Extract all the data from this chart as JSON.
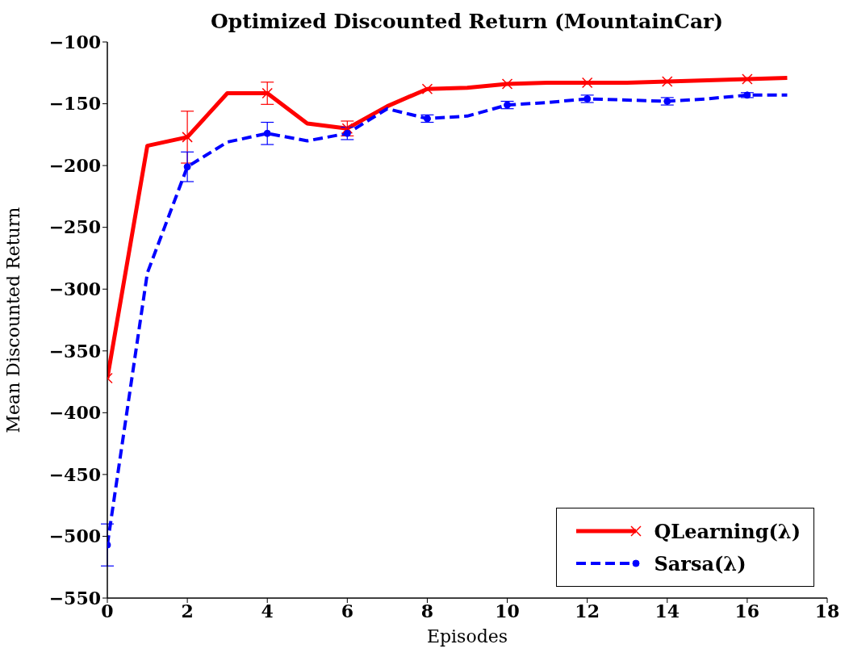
{
  "chart_data": {
    "type": "line",
    "title": "Optimized Discounted Return (MountainCar)",
    "xlabel": "Episodes",
    "ylabel": "Mean Discounted Return",
    "x": [
      0,
      1,
      2,
      3,
      4,
      5,
      6,
      7,
      8,
      9,
      10,
      11,
      12,
      13,
      14,
      15,
      16,
      17
    ],
    "xlim": [
      0,
      18
    ],
    "xticks": [
      0,
      2,
      4,
      6,
      8,
      10,
      12,
      14,
      16,
      18
    ],
    "ylim": [
      -550,
      -100
    ],
    "yticks": [
      -550,
      -500,
      -450,
      -400,
      -350,
      -300,
      -250,
      -200,
      -150,
      -100
    ],
    "grid": false,
    "legend": "bottom right",
    "series": [
      {
        "name": "QLearning(λ)",
        "color": "#ff0000",
        "marker": "cross",
        "line_style": "solid",
        "values": [
          -372,
          -184,
          -177,
          -141.5,
          -141.5,
          -166,
          -170,
          -152,
          -138,
          -137,
          -134,
          -133,
          -133,
          -133,
          -132,
          -131,
          -130,
          -129
        ],
        "errors": [
          null,
          null,
          21,
          null,
          9,
          null,
          6,
          null,
          null,
          null,
          null,
          null,
          null,
          null,
          null,
          null,
          null,
          null
        ]
      },
      {
        "name": "Sarsa(λ)",
        "color": "#0000ff",
        "marker": "circle",
        "line_style": "dashed",
        "values": [
          -507,
          -287,
          -201,
          -181,
          -174,
          -180,
          -174,
          -154,
          -162,
          -160,
          -151,
          -149,
          -146,
          -147,
          -148,
          -146,
          -143,
          -143
        ],
        "errors": [
          17,
          null,
          12,
          null,
          9,
          null,
          5,
          null,
          3,
          null,
          3,
          null,
          3,
          null,
          3,
          null,
          2,
          null
        ]
      }
    ]
  }
}
